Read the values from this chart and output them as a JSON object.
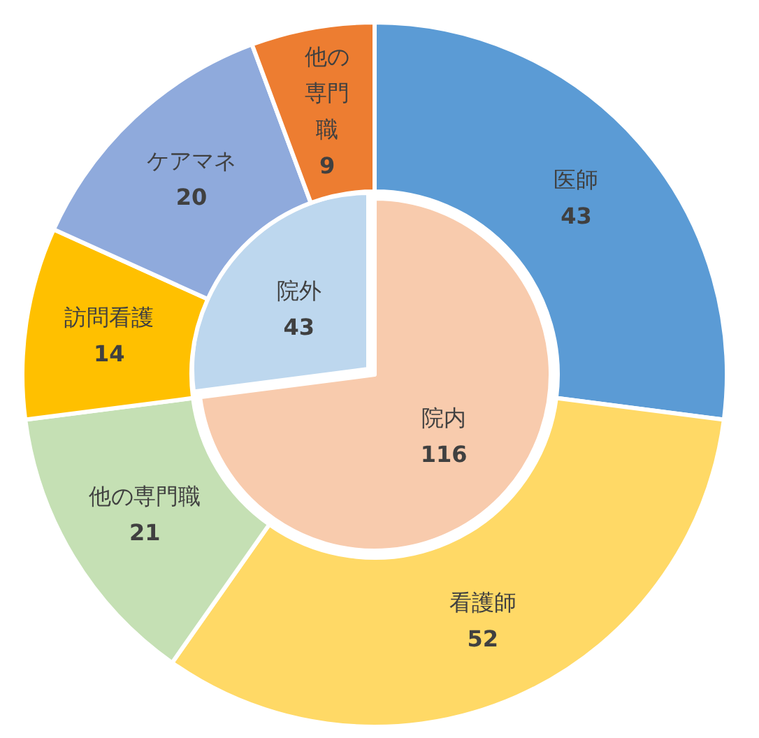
{
  "chart_data": [
    {
      "type": "pie",
      "categories": [
        "院内",
        "院外"
      ],
      "values": [
        116,
        43
      ],
      "colors": [
        "#f8cbad",
        "#bdd7ee"
      ],
      "data_labels": true
    },
    {
      "type": "donut",
      "categories": [
        "医師",
        "看護師",
        "他の専門職",
        "訪問看護",
        "ケアマネ",
        "他の専門職"
      ],
      "values": [
        43,
        52,
        21,
        14,
        20,
        9
      ],
      "colors": [
        "#5b9bd5",
        "#ffd966",
        "#c5e0b4",
        "#ffc000",
        "#8faadc",
        "#ed7d31"
      ],
      "data_labels": true
    }
  ]
}
